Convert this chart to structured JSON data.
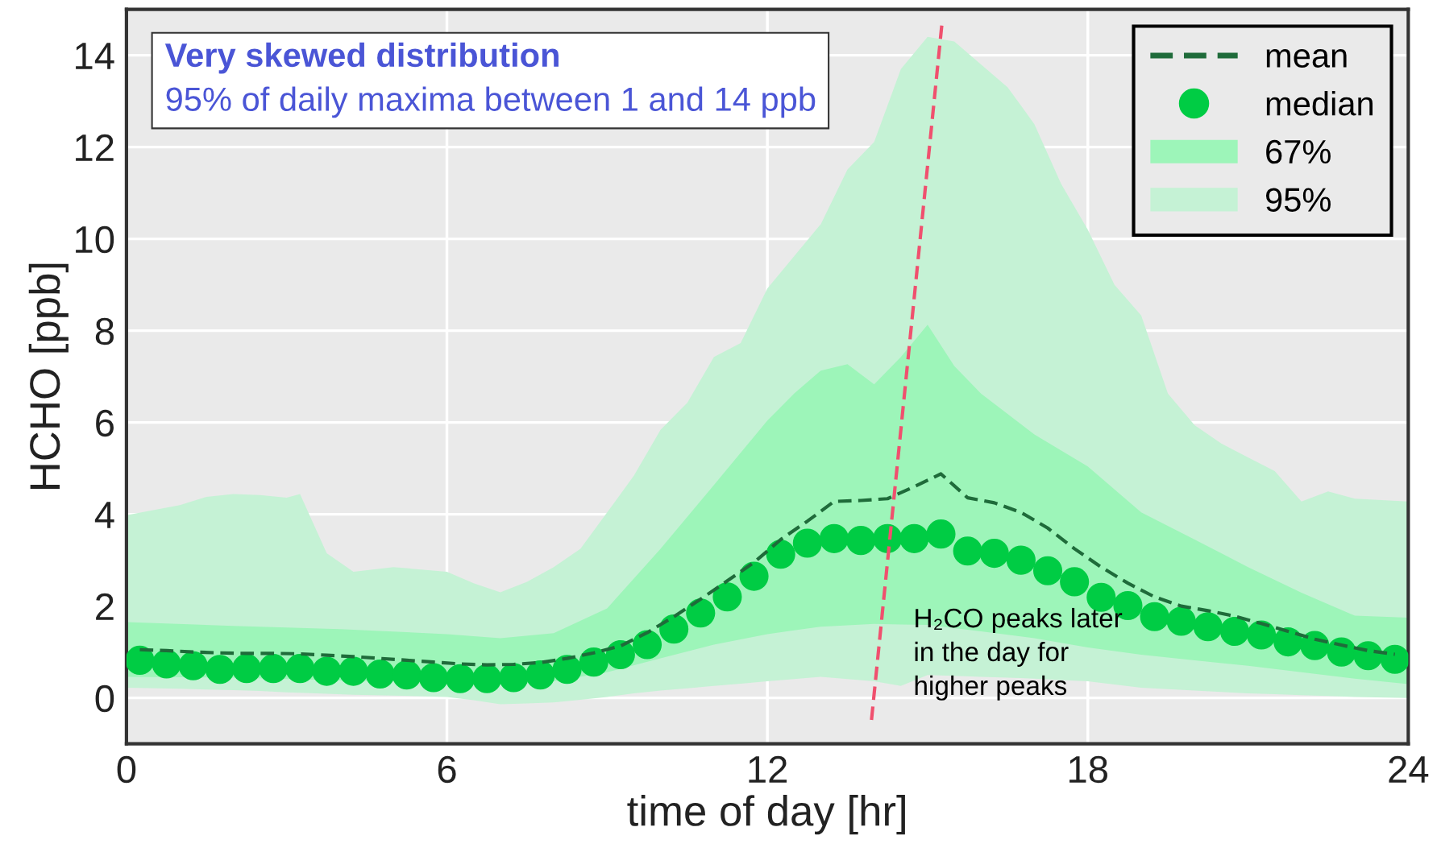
{
  "chart_data": {
    "type": "line",
    "xlabel": "time of day [hr]",
    "ylabel": "HCHO [ppb]",
    "xlim": [
      0,
      24
    ],
    "ylim": [
      -1,
      15
    ],
    "xticks": [
      0,
      6,
      12,
      18,
      24
    ],
    "yticks": [
      0,
      2,
      4,
      6,
      8,
      10,
      12,
      14
    ],
    "grid": true,
    "legend": "top right",
    "annotations": [
      "Very skewed distribution",
      "95% of daily maxima between 1 and 14 ppb",
      "H₂CO peaks later\nin the day for\nhigher peaks"
    ],
    "series": [
      {
        "name": "95%",
        "type": "area",
        "color": "#c5f2d5",
        "x": [
          0,
          1,
          1.5,
          2,
          2.5,
          3,
          3.25,
          3.75,
          4.25,
          5,
          6,
          6.5,
          7,
          7.5,
          8,
          8.5,
          9,
          9.5,
          10,
          10.5,
          11,
          11.5,
          12,
          12.5,
          13,
          13.5,
          14,
          14.5,
          15,
          15.5,
          16,
          16.5,
          17,
          17.5,
          18,
          18.5,
          19,
          19.5,
          20,
          20.5,
          21,
          21.5,
          22,
          22.5,
          23,
          24
        ],
        "values": [
          null,
          null,
          null,
          null,
          null,
          null,
          null,
          null,
          null,
          null,
          null,
          null,
          null,
          null,
          null,
          null,
          null,
          null,
          null,
          null,
          null,
          null,
          null,
          null,
          null,
          null,
          null,
          null,
          null,
          null,
          null,
          null,
          null,
          null,
          null,
          null,
          null,
          null,
          null,
          null,
          null,
          null,
          null,
          null,
          null,
          null
        ],
        "upper": [
          3.98,
          4.2,
          4.38,
          4.44,
          4.42,
          4.36,
          4.44,
          3.15,
          2.75,
          2.85,
          2.75,
          2.5,
          2.3,
          2.53,
          2.85,
          3.25,
          4.04,
          4.84,
          5.84,
          6.43,
          7.43,
          7.73,
          8.92,
          9.62,
          10.32,
          11.51,
          12.11,
          13.7,
          14.4,
          14.3,
          13.8,
          13.3,
          12.5,
          11.2,
          10.2,
          9.0,
          8.33,
          6.63,
          5.94,
          5.54,
          5.24,
          4.94,
          4.28,
          4.5,
          4.34,
          4.28
        ],
        "lower": [
          0.22,
          0.2,
          0.18,
          0.17,
          0.15,
          0.12,
          0.11,
          0.09,
          0.07,
          0.05,
          0.02,
          -0.05,
          -0.14,
          -0.12,
          -0.1,
          -0.04,
          0.02,
          0.1,
          0.16,
          0.21,
          0.26,
          0.31,
          0.36,
          0.41,
          0.46,
          0.41,
          0.36,
          0.26,
          0.5,
          0.48,
          0.46,
          0.44,
          0.42,
          0.39,
          0.36,
          0.29,
          0.22,
          0.19,
          0.16,
          0.13,
          0.1,
          0.08,
          0.06,
          0.04,
          0.02,
          0.0
        ]
      },
      {
        "name": "67%",
        "type": "area",
        "color": "#9df5b9",
        "x": [
          0,
          2,
          4,
          6,
          7,
          8,
          9,
          10,
          11,
          12,
          12.5,
          13,
          13.5,
          14,
          14.5,
          15,
          15.5,
          16,
          17,
          18,
          19,
          20,
          21,
          22,
          23,
          24
        ],
        "values": [
          null,
          null,
          null,
          null,
          null,
          null,
          null,
          null,
          null,
          null,
          null,
          null,
          null,
          null,
          null,
          null,
          null,
          null,
          null,
          null,
          null,
          null,
          null,
          null,
          null,
          null
        ],
        "upper": [
          1.65,
          1.57,
          1.5,
          1.39,
          1.3,
          1.41,
          1.95,
          3.25,
          4.64,
          6.04,
          6.63,
          7.13,
          7.27,
          6.83,
          7.43,
          8.13,
          7.23,
          6.63,
          5.74,
          5.04,
          4.04,
          3.45,
          2.85,
          2.29,
          1.79,
          1.75
        ],
        "lower": [
          0.46,
          0.44,
          0.38,
          0.34,
          0.3,
          0.36,
          0.56,
          0.86,
          1.16,
          1.39,
          1.47,
          1.55,
          1.58,
          1.61,
          1.6,
          1.59,
          1.52,
          1.45,
          1.3,
          1.1,
          0.94,
          0.82,
          0.7,
          0.56,
          0.42,
          0.3
        ]
      },
      {
        "name": "mean",
        "color": "#1f6b3a",
        "line_style": "dashed",
        "marker": "none",
        "x": [
          0.25,
          0.75,
          1.25,
          1.75,
          2.25,
          2.75,
          3.25,
          3.75,
          4.25,
          4.75,
          5.25,
          5.75,
          6.25,
          6.75,
          7.25,
          7.75,
          8.25,
          8.75,
          9.25,
          9.75,
          10.25,
          10.75,
          11.25,
          11.75,
          12.25,
          12.75,
          13.25,
          13.75,
          14.25,
          14.75,
          15.25,
          15.75,
          16.25,
          16.75,
          17.25,
          17.75,
          18.25,
          18.75,
          19.25,
          19.75,
          20.25,
          20.75,
          21.25,
          21.75,
          22.25,
          22.75,
          23.25,
          23.75
        ],
        "values": [
          1.05,
          1.03,
          1.0,
          0.98,
          0.97,
          0.97,
          0.96,
          0.93,
          0.9,
          0.86,
          0.82,
          0.78,
          0.74,
          0.72,
          0.73,
          0.77,
          0.86,
          0.98,
          1.13,
          1.42,
          1.77,
          2.15,
          2.55,
          2.95,
          3.45,
          3.85,
          4.28,
          4.3,
          4.34,
          4.6,
          4.88,
          4.36,
          4.25,
          4.04,
          3.7,
          3.25,
          2.85,
          2.5,
          2.2,
          2.0,
          1.9,
          1.78,
          1.62,
          1.45,
          1.28,
          1.15,
          1.03,
          0.95
        ]
      },
      {
        "name": "median",
        "type": "scatter",
        "color": "#00cc44",
        "marker": "circle",
        "x": [
          0.25,
          0.75,
          1.25,
          1.75,
          2.25,
          2.75,
          3.25,
          3.75,
          4.25,
          4.75,
          5.25,
          5.75,
          6.25,
          6.75,
          7.25,
          7.75,
          8.25,
          8.75,
          9.25,
          9.75,
          10.25,
          10.75,
          11.25,
          11.75,
          12.25,
          12.75,
          13.25,
          13.75,
          14.25,
          14.75,
          15.25,
          15.75,
          16.25,
          16.75,
          17.25,
          17.75,
          18.25,
          18.75,
          19.25,
          19.75,
          20.25,
          20.75,
          21.25,
          21.75,
          22.25,
          22.75,
          23.25,
          23.75
        ],
        "values": [
          0.82,
          0.74,
          0.7,
          0.62,
          0.64,
          0.64,
          0.64,
          0.58,
          0.58,
          0.52,
          0.5,
          0.44,
          0.42,
          0.42,
          0.44,
          0.5,
          0.62,
          0.78,
          0.94,
          1.16,
          1.5,
          1.85,
          2.2,
          2.65,
          3.13,
          3.37,
          3.47,
          3.43,
          3.47,
          3.47,
          3.57,
          3.2,
          3.15,
          3.0,
          2.77,
          2.53,
          2.19,
          2.01,
          1.77,
          1.67,
          1.55,
          1.45,
          1.37,
          1.22,
          1.14,
          1.0,
          0.92,
          0.84
        ]
      },
      {
        "color": "#f0506e",
        "line_style": "dashed",
        "marker": "none",
        "x": [
          13.95,
          15.27
        ],
        "values": [
          -0.48,
          14.7
        ]
      }
    ]
  }
}
